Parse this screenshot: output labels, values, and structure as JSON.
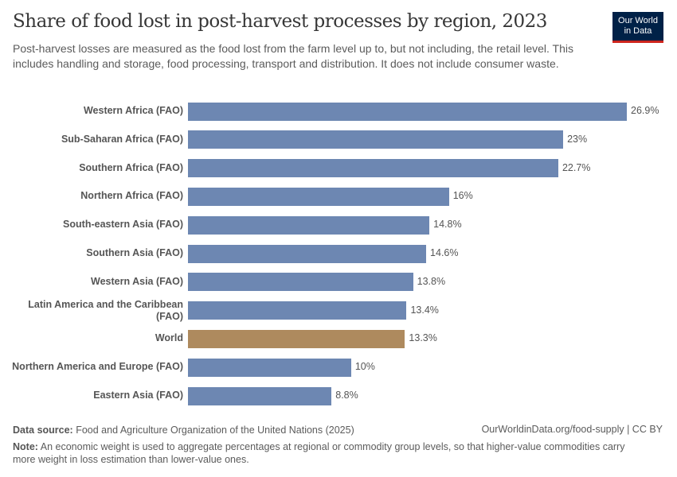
{
  "title": "Share of food lost in post-harvest processes by region, 2023",
  "subtitle": "Post-harvest losses are measured as the food lost from the farm level up to, but not including, the retail level. This includes handling and storage, food processing, transport and distribution. It does not include consumer waste.",
  "logo": {
    "line1": "Our World",
    "line2": "in Data"
  },
  "footer": {
    "source_label": "Data source:",
    "source": "Food and Agriculture Organization of the United Nations (2025)",
    "url": "OurWorldinData.org/food-supply | CC BY",
    "note_label": "Note:",
    "note": "An economic weight is used to aggregate percentages at regional or commodity group levels, so that higher-value commodities carry more weight in loss estimation than lower-value ones."
  },
  "colors": {
    "bar": "#6d87b2",
    "highlight": "#ae8a5e"
  },
  "chart_data": {
    "type": "bar",
    "orientation": "horizontal",
    "categories": [
      "Western Africa (FAO)",
      "Sub-Saharan Africa (FAO)",
      "Southern Africa (FAO)",
      "Northern Africa (FAO)",
      "South-eastern Asia (FAO)",
      "Southern Asia (FAO)",
      "Western Asia (FAO)",
      "Latin America and the Caribbean (FAO)",
      "World",
      "Northern America and Europe (FAO)",
      "Eastern Asia (FAO)"
    ],
    "values": [
      26.9,
      23,
      22.7,
      16,
      14.8,
      14.6,
      13.8,
      13.4,
      13.3,
      10,
      8.8
    ],
    "labels": [
      "26.9%",
      "23%",
      "22.7%",
      "16%",
      "14.8%",
      "14.6%",
      "13.8%",
      "13.4%",
      "13.3%",
      "10%",
      "8.8%"
    ],
    "highlight": "World",
    "unit": "%",
    "xlim": [
      0,
      26.9
    ]
  }
}
